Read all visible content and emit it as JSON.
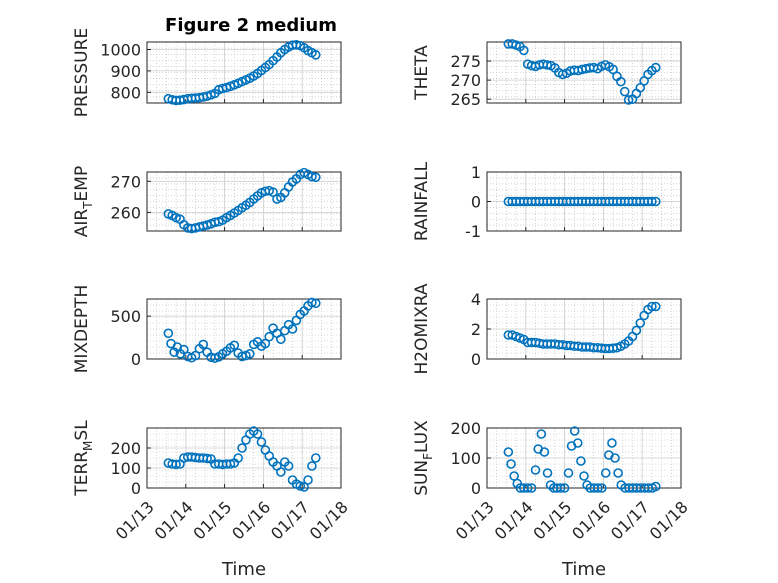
{
  "figure": {
    "title": "Figure 2 medium"
  },
  "colors": {
    "series": "#0072BD",
    "axis": "#262626",
    "grid": "#cfcfcf"
  },
  "chart_data": [
    {
      "type": "scatter",
      "id": "pressure",
      "ylabel": "PRESSURE",
      "xlabel": "",
      "title": "Figure 2 medium",
      "ylim": [
        750,
        1035
      ],
      "yticks": [
        "800",
        "900",
        "1000"
      ],
      "ytick_values": [
        800,
        900,
        1000
      ],
      "xlim": [
        0,
        5
      ],
      "xticks": [
        "01/13",
        "01/14",
        "01/15",
        "01/16",
        "01/17",
        "01/18"
      ],
      "show_xtick_labels": false,
      "x": [
        0.55,
        0.65,
        0.75,
        0.85,
        0.95,
        1.05,
        1.15,
        1.25,
        1.35,
        1.45,
        1.55,
        1.65,
        1.75,
        1.85,
        1.95,
        2.05,
        2.15,
        2.25,
        2.35,
        2.45,
        2.55,
        2.65,
        2.75,
        2.85,
        2.95,
        3.05,
        3.15,
        3.25,
        3.35,
        3.45,
        3.55,
        3.65,
        3.75,
        3.85,
        3.95,
        4.05,
        4.15,
        4.25,
        4.35
      ],
      "y": [
        770,
        765,
        762,
        763,
        766,
        770,
        772,
        773,
        775,
        778,
        782,
        788,
        795,
        812,
        818,
        822,
        828,
        835,
        842,
        850,
        858,
        866,
        876,
        888,
        902,
        916,
        930,
        948,
        965,
        985,
        1000,
        1012,
        1020,
        1022,
        1018,
        1008,
        995,
        985,
        975
      ]
    },
    {
      "type": "scatter",
      "id": "theta",
      "ylabel": "THETA",
      "xlabel": "",
      "ylim": [
        264,
        280
      ],
      "yticks": [
        "265",
        "270",
        "275"
      ],
      "ytick_values": [
        265,
        270,
        275
      ],
      "xlim": [
        0,
        5
      ],
      "xticks": [
        "01/13",
        "01/14",
        "01/15",
        "01/16",
        "01/17",
        "01/18"
      ],
      "show_xtick_labels": false,
      "x": [
        0.55,
        0.65,
        0.75,
        0.85,
        0.95,
        1.05,
        1.15,
        1.25,
        1.35,
        1.45,
        1.55,
        1.65,
        1.75,
        1.85,
        1.95,
        2.05,
        2.15,
        2.25,
        2.35,
        2.45,
        2.55,
        2.65,
        2.75,
        2.85,
        2.95,
        3.05,
        3.15,
        3.25,
        3.35,
        3.45,
        3.55,
        3.65,
        3.75,
        3.85,
        3.95,
        4.05,
        4.15,
        4.25,
        4.35
      ],
      "y": [
        279.5,
        279.5,
        279.2,
        278.8,
        277.8,
        274.2,
        273.8,
        273.6,
        274.0,
        274.2,
        274.0,
        273.8,
        273.2,
        272.0,
        271.5,
        271.8,
        272.4,
        272.6,
        272.5,
        272.8,
        273.0,
        273.2,
        273.3,
        273.0,
        273.6,
        274.0,
        273.5,
        272.8,
        271.0,
        269.6,
        267.0,
        264.8,
        265.0,
        266.5,
        268.0,
        269.8,
        271.5,
        272.5,
        273.3
      ]
    },
    {
      "type": "scatter",
      "id": "air_temp",
      "ylabel": "AIR",
      "ylabel_sub": "T",
      "ylabel_rest": "EMP",
      "xlabel": "",
      "ylim": [
        254,
        273
      ],
      "yticks": [
        "260",
        "270"
      ],
      "ytick_values": [
        260,
        270
      ],
      "xlim": [
        0,
        5
      ],
      "xticks": [
        "01/13",
        "01/14",
        "01/15",
        "01/16",
        "01/17",
        "01/18"
      ],
      "show_xtick_labels": false,
      "x": [
        0.55,
        0.65,
        0.75,
        0.85,
        0.95,
        1.05,
        1.15,
        1.25,
        1.35,
        1.45,
        1.55,
        1.65,
        1.75,
        1.85,
        1.95,
        2.05,
        2.15,
        2.25,
        2.35,
        2.45,
        2.55,
        2.65,
        2.75,
        2.85,
        2.95,
        3.05,
        3.15,
        3.25,
        3.35,
        3.45,
        3.55,
        3.65,
        3.75,
        3.85,
        3.95,
        4.05,
        4.15,
        4.25,
        4.35
      ],
      "y": [
        259.5,
        259.0,
        258.3,
        257.8,
        256.0,
        255.0,
        254.8,
        255.0,
        255.3,
        255.6,
        255.9,
        256.3,
        256.8,
        257.0,
        257.5,
        258.3,
        259.0,
        259.8,
        260.6,
        261.5,
        262.3,
        263.2,
        264.3,
        265.3,
        266.3,
        266.8,
        267.0,
        266.5,
        264.3,
        264.8,
        266.3,
        268.2,
        269.8,
        270.8,
        272.2,
        272.8,
        272.2,
        271.5,
        271.3
      ]
    },
    {
      "type": "scatter",
      "id": "rainfall",
      "ylabel": "RAINFALL",
      "xlabel": "",
      "ylim": [
        -1,
        1
      ],
      "yticks": [
        "-1",
        "0",
        "1"
      ],
      "ytick_values": [
        -1,
        0,
        1
      ],
      "xlim": [
        0,
        5
      ],
      "xticks": [
        "01/13",
        "01/14",
        "01/15",
        "01/16",
        "01/17",
        "01/18"
      ],
      "show_xtick_labels": false,
      "x": [
        0.55,
        0.65,
        0.75,
        0.85,
        0.95,
        1.05,
        1.15,
        1.25,
        1.35,
        1.45,
        1.55,
        1.65,
        1.75,
        1.85,
        1.95,
        2.05,
        2.15,
        2.25,
        2.35,
        2.45,
        2.55,
        2.65,
        2.75,
        2.85,
        2.95,
        3.05,
        3.15,
        3.25,
        3.35,
        3.45,
        3.55,
        3.65,
        3.75,
        3.85,
        3.95,
        4.05,
        4.15,
        4.25,
        4.35
      ],
      "y": [
        0,
        0,
        0,
        0,
        0,
        0,
        0,
        0,
        0,
        0,
        0,
        0,
        0,
        0,
        0,
        0,
        0,
        0,
        0,
        0,
        0,
        0,
        0,
        0,
        0,
        0,
        0,
        0,
        0,
        0,
        0,
        0,
        0,
        0,
        0,
        0,
        0,
        0,
        0
      ]
    },
    {
      "type": "scatter",
      "id": "mixdepth",
      "ylabel": "MIXDEPTH",
      "xlabel": "",
      "ylim": [
        0,
        700
      ],
      "yticks": [
        "0",
        "500"
      ],
      "ytick_values": [
        0,
        500
      ],
      "xlim": [
        0,
        5
      ],
      "xticks": [
        "01/13",
        "01/14",
        "01/15",
        "01/16",
        "01/17",
        "01/18"
      ],
      "show_xtick_labels": false,
      "x": [
        0.55,
        0.62,
        0.7,
        0.78,
        0.86,
        0.95,
        1.05,
        1.15,
        1.25,
        1.35,
        1.45,
        1.55,
        1.65,
        1.75,
        1.85,
        1.95,
        2.05,
        2.15,
        2.25,
        2.35,
        2.45,
        2.55,
        2.65,
        2.75,
        2.85,
        2.95,
        3.05,
        3.15,
        3.25,
        3.35,
        3.45,
        3.55,
        3.65,
        3.75,
        3.85,
        3.95,
        4.05,
        4.15,
        4.25,
        4.35
      ],
      "y": [
        300,
        180,
        80,
        140,
        60,
        110,
        30,
        15,
        40,
        120,
        170,
        80,
        20,
        10,
        25,
        60,
        90,
        130,
        160,
        70,
        30,
        40,
        60,
        170,
        200,
        150,
        180,
        260,
        360,
        300,
        230,
        330,
        400,
        350,
        450,
        520,
        560,
        620,
        660,
        650
      ]
    },
    {
      "type": "scatter",
      "id": "h2omixra",
      "ylabel": "H2OMIXRA",
      "xlabel": "",
      "ylim": [
        0,
        4
      ],
      "yticks": [
        "0",
        "2",
        "4"
      ],
      "ytick_values": [
        0,
        2,
        4
      ],
      "xlim": [
        0,
        5
      ],
      "xticks": [
        "01/13",
        "01/14",
        "01/15",
        "01/16",
        "01/17",
        "01/18"
      ],
      "show_xtick_labels": false,
      "x": [
        0.55,
        0.65,
        0.75,
        0.85,
        0.95,
        1.05,
        1.15,
        1.25,
        1.35,
        1.45,
        1.55,
        1.65,
        1.75,
        1.85,
        1.95,
        2.05,
        2.15,
        2.25,
        2.35,
        2.45,
        2.55,
        2.65,
        2.75,
        2.85,
        2.95,
        3.05,
        3.15,
        3.25,
        3.35,
        3.45,
        3.55,
        3.65,
        3.75,
        3.85,
        3.95,
        4.05,
        4.15,
        4.25,
        4.35
      ],
      "y": [
        1.6,
        1.6,
        1.5,
        1.4,
        1.3,
        1.1,
        1.1,
        1.1,
        1.05,
        1.0,
        1.0,
        1.0,
        1.0,
        0.95,
        0.95,
        0.9,
        0.9,
        0.85,
        0.85,
        0.8,
        0.8,
        0.8,
        0.75,
        0.75,
        0.72,
        0.7,
        0.7,
        0.72,
        0.75,
        0.85,
        1.0,
        1.2,
        1.5,
        1.9,
        2.4,
        2.9,
        3.3,
        3.5,
        3.5
      ]
    },
    {
      "type": "scatter",
      "id": "terr_msl",
      "ylabel": "TERR",
      "ylabel_sub": "M",
      "ylabel_rest": "SL",
      "xlabel": "Time",
      "ylim": [
        0,
        300
      ],
      "yticks": [
        "0",
        "100",
        "200"
      ],
      "ytick_values": [
        0,
        100,
        200
      ],
      "xlim": [
        0,
        5
      ],
      "xticks": [
        "01/13",
        "01/14",
        "01/15",
        "01/16",
        "01/17",
        "01/18"
      ],
      "show_xtick_labels": true,
      "x": [
        0.55,
        0.65,
        0.75,
        0.85,
        0.95,
        1.05,
        1.15,
        1.25,
        1.35,
        1.45,
        1.55,
        1.65,
        1.75,
        1.85,
        1.95,
        2.05,
        2.15,
        2.25,
        2.35,
        2.45,
        2.55,
        2.65,
        2.75,
        2.85,
        2.95,
        3.05,
        3.15,
        3.25,
        3.35,
        3.45,
        3.55,
        3.65,
        3.75,
        3.85,
        3.95,
        4.05,
        4.15,
        4.25,
        4.35
      ],
      "y": [
        125,
        120,
        118,
        120,
        150,
        155,
        155,
        152,
        150,
        150,
        148,
        145,
        120,
        120,
        118,
        120,
        120,
        125,
        150,
        200,
        240,
        270,
        285,
        270,
        230,
        190,
        160,
        130,
        110,
        80,
        130,
        110,
        40,
        20,
        10,
        5,
        40,
        110,
        150
      ]
    },
    {
      "type": "scatter",
      "id": "sun_flux",
      "ylabel": "SUN",
      "ylabel_sub": "F",
      "ylabel_rest": "LUX",
      "xlabel": "Time",
      "ylim": [
        0,
        200
      ],
      "yticks": [
        "0",
        "100",
        "200"
      ],
      "ytick_values": [
        0,
        100,
        200
      ],
      "xlim": [
        0,
        5
      ],
      "xticks": [
        "01/13",
        "01/14",
        "01/15",
        "01/16",
        "01/17",
        "01/18"
      ],
      "show_xtick_labels": true,
      "x": [
        0.55,
        0.62,
        0.7,
        0.78,
        0.86,
        0.95,
        1.05,
        1.15,
        1.25,
        1.32,
        1.4,
        1.48,
        1.56,
        1.64,
        1.72,
        1.8,
        1.9,
        2.0,
        2.1,
        2.18,
        2.26,
        2.34,
        2.42,
        2.5,
        2.58,
        2.66,
        2.76,
        2.86,
        2.96,
        3.06,
        3.14,
        3.22,
        3.3,
        3.38,
        3.46,
        3.56,
        3.66,
        3.76,
        3.86,
        3.96,
        4.06,
        4.16,
        4.26,
        4.35
      ],
      "y": [
        120,
        80,
        40,
        15,
        0,
        0,
        0,
        0,
        60,
        130,
        180,
        120,
        50,
        10,
        0,
        0,
        0,
        0,
        50,
        140,
        190,
        150,
        90,
        40,
        10,
        0,
        0,
        0,
        0,
        50,
        110,
        150,
        100,
        50,
        10,
        0,
        0,
        0,
        0,
        0,
        0,
        0,
        0,
        5
      ]
    }
  ]
}
